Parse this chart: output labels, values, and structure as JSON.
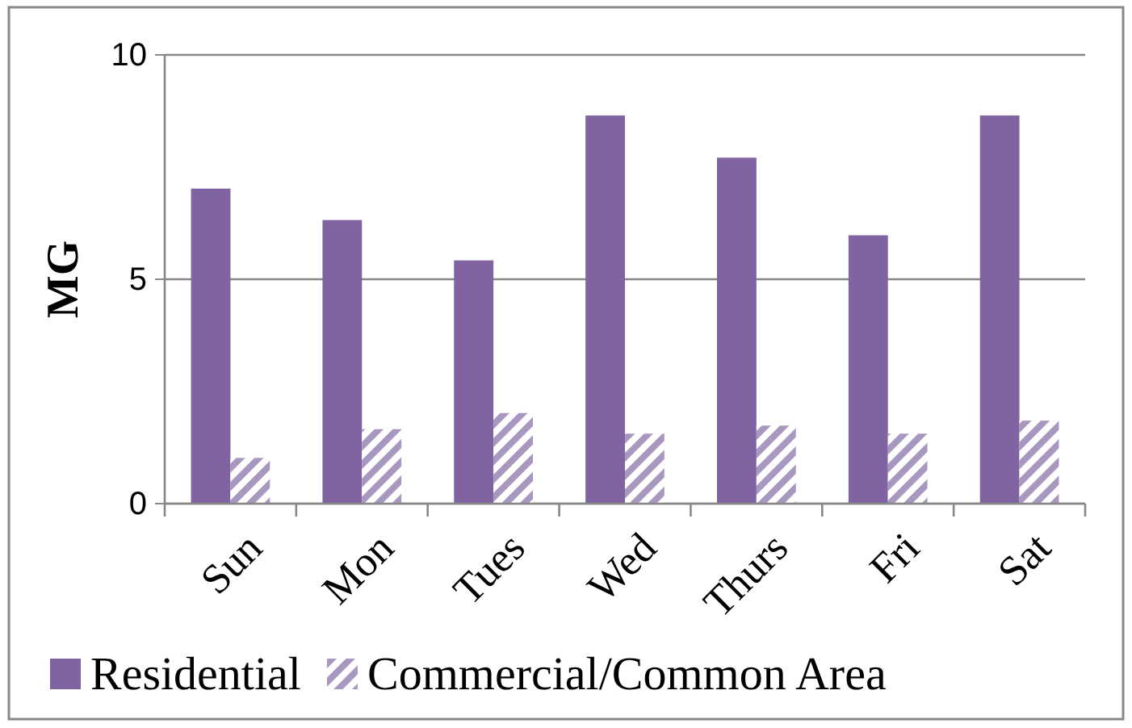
{
  "chart_data": {
    "type": "bar",
    "ylabel": "MG",
    "categories": [
      "Sun",
      "Mon",
      "Tues",
      "Wed",
      "Thurs",
      "Fri",
      "Sat"
    ],
    "series": [
      {
        "name": "Residential",
        "color": "#8064a2",
        "values": [
          7.02,
          6.32,
          5.42,
          8.65,
          7.71,
          5.98,
          8.65
        ]
      },
      {
        "name": "Commercial/Common Area",
        "color": "#a898c0",
        "values": [
          1.02,
          1.66,
          2.02,
          1.56,
          1.74,
          1.56,
          1.85
        ]
      }
    ],
    "ylim": [
      0,
      10
    ],
    "yticks": [
      0,
      5,
      10
    ],
    "grid": "y",
    "legend": "bottom"
  }
}
